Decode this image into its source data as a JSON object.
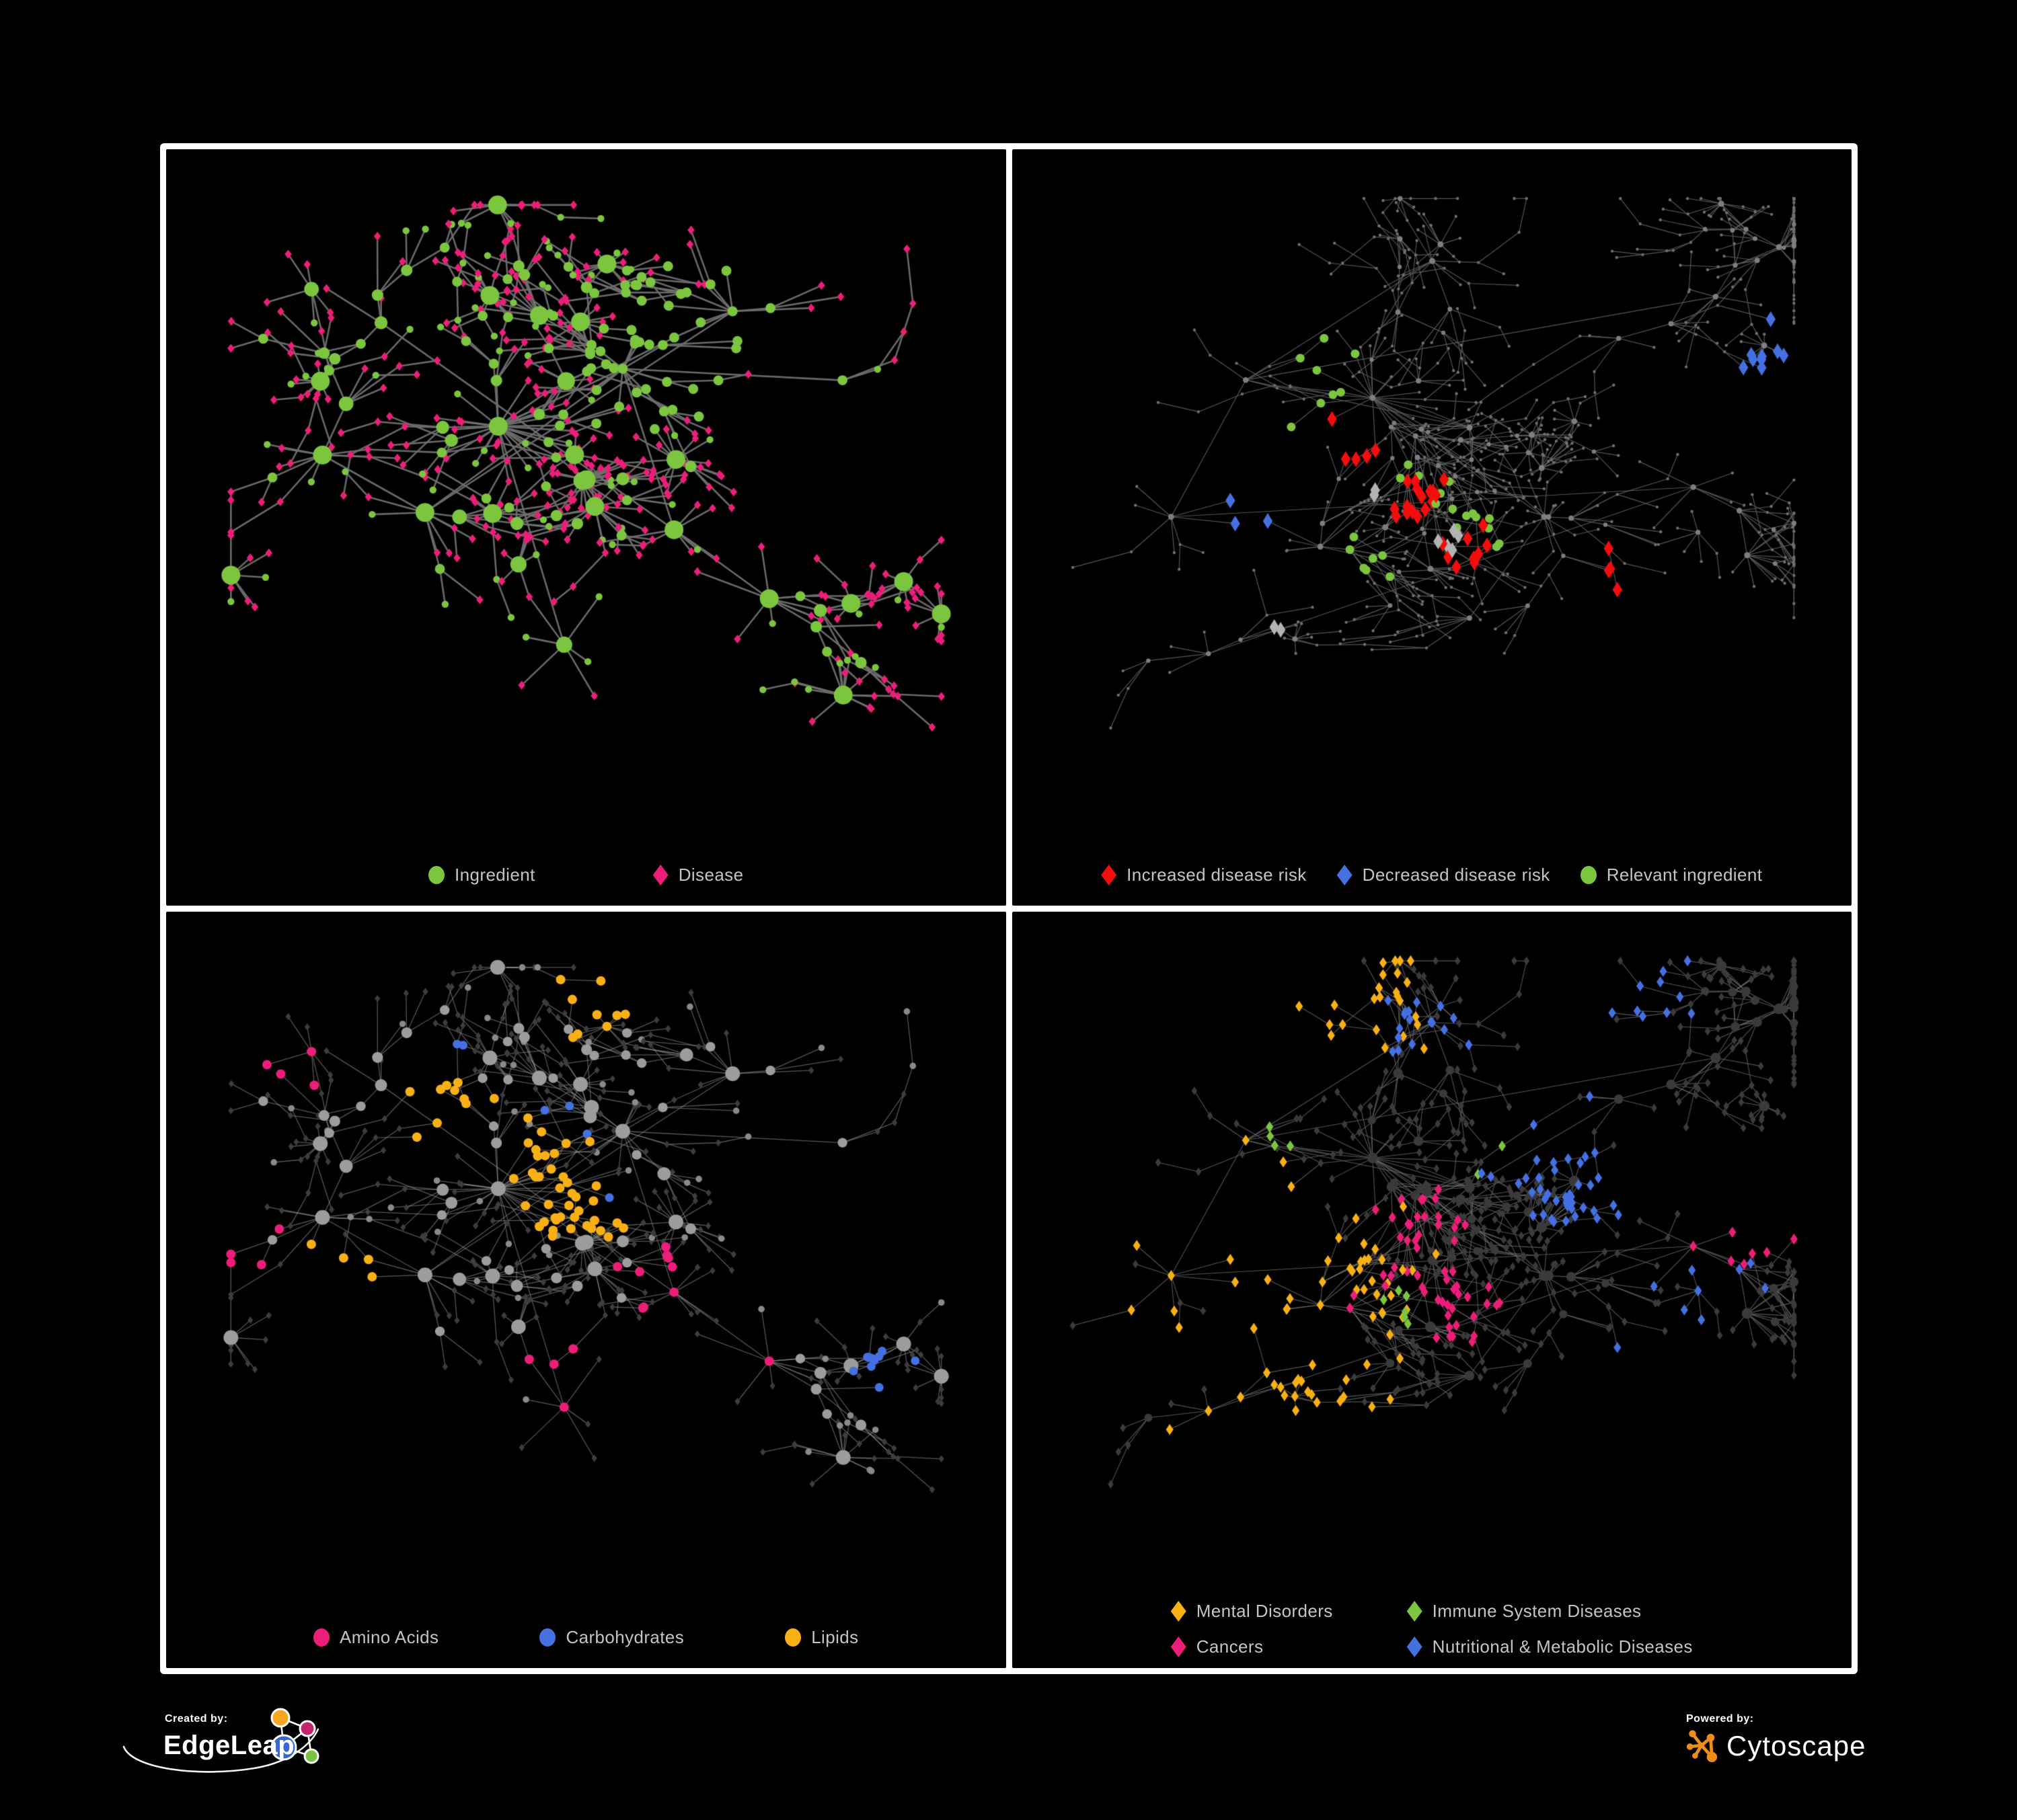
{
  "figure": {
    "background": "#000000",
    "panel_background": "#000000",
    "border_color": "#ffffff"
  },
  "footer": {
    "created_by": "Created by:",
    "brand_name": "EdgeLeap",
    "powered_by": "Powered by:",
    "engine_name": "Cytoscape"
  },
  "palette": {
    "green": "#7CC53E",
    "magenta": "#EC1E79",
    "red": "#F40D0D",
    "blue": "#4470E2",
    "orange": "#F9B014",
    "gray_highlight": "#B3B3B3",
    "dim_gray": "#3D3D3D",
    "legend_text": "#C4C4C4",
    "edgeleap_blue": "#3A66D4",
    "edgeleap_orange": "#F5A623",
    "edgeleap_magenta": "#C2256E",
    "edgeleap_green": "#7DC242",
    "cytoscape_orange": "#EE8C1C"
  },
  "panels": [
    {
      "name": "ingredient-disease-network",
      "topology": "A",
      "legend_layout": "row",
      "legend_gap": 175,
      "legend": [
        {
          "icon": "circle-swatch",
          "color": "#7CC53E",
          "label": "Ingredient"
        },
        {
          "icon": "diamond-swatch",
          "color": "#EC1E79",
          "label": "Disease"
        }
      ],
      "style": {
        "seed": 21,
        "margins": [
          70,
          80,
          200,
          80
        ],
        "dw": 0.95,
        "edge": {
          "color": "#6F6F6F",
          "width": 2.6,
          "alpha": 0.95
        },
        "hub": {
          "shape": "circle",
          "color": "#7CC53E",
          "minDeg": 3,
          "rBase": 4.0,
          "rScale": 1.15,
          "rMax": 14
        },
        "leaf": {
          "shape": "diamond",
          "color": "#EC1E79",
          "r": 5.6
        },
        "leafAlt": {
          "shape": "circle",
          "color": "#7CC53E",
          "r": 5.2,
          "prob": 0.2
        },
        "highlights": [
          {
            "shape": "circle",
            "color": "#7CC53E",
            "size": 7.5,
            "count": 46,
            "focals": [
              [
                0.64,
                0.23
              ],
              [
                0.58,
                0.3
              ]
            ],
            "radius": 0.08
          }
        ]
      }
    },
    {
      "name": "disease-risk-network",
      "topology": "B",
      "legend_layout": "row",
      "legend_gap": 45,
      "legend": [
        {
          "icon": "diamond-swatch",
          "color": "#F40D0D",
          "label": "Increased disease risk"
        },
        {
          "icon": "diamond-swatch",
          "color": "#4470E2",
          "label": "Decreased disease risk"
        },
        {
          "icon": "circle-swatch",
          "color": "#7CC53E",
          "label": "Relevant ingredient"
        }
      ],
      "style": {
        "seed": 31,
        "margins": [
          60,
          70,
          180,
          70
        ],
        "dw": 0.72,
        "edge": {
          "color": "#5E5E5E",
          "width": 1.2,
          "alpha": 0.9
        },
        "hub": {
          "shape": "circle",
          "color": "#7E7E7E",
          "minDeg": 4,
          "rBase": 2.2,
          "rScale": 0.25,
          "rMax": 4.5
        },
        "leaf": {
          "shape": "circle",
          "color": "#6F6F6F",
          "r": 2.2
        },
        "highlights": [
          {
            "shape": "diamond",
            "color": "#F40D0D",
            "size": 10,
            "count": 34,
            "focals": [
              [
                0.4,
                0.45
              ],
              [
                0.48,
                0.52
              ],
              [
                0.36,
                0.4
              ],
              [
                0.55,
                0.6
              ],
              [
                0.6,
                0.92
              ],
              [
                0.75,
                0.65
              ]
            ],
            "radius": 0.11
          },
          {
            "shape": "diamond",
            "color": "#4470E2",
            "size": 10,
            "count": 12,
            "focals": [
              [
                0.23,
                0.5
              ],
              [
                0.94,
                0.32
              ]
            ],
            "radius": 0.08
          },
          {
            "shape": "diamond",
            "color": "#B3B3B3",
            "size": 10,
            "count": 9,
            "focals": [
              [
                0.17,
                0.47
              ],
              [
                0.43,
                0.5
              ],
              [
                0.52,
                0.6
              ],
              [
                0.28,
                0.75
              ]
            ],
            "radius": 0.09
          },
          {
            "shape": "circle",
            "color": "#7CC53E",
            "size": 6.5,
            "count": 30,
            "focals": [
              [
                0.3,
                0.42
              ],
              [
                0.48,
                0.5
              ],
              [
                0.22,
                0.46
              ],
              [
                0.55,
                0.58
              ],
              [
                0.12,
                0.72
              ],
              [
                0.4,
                0.62
              ],
              [
                0.35,
                0.3
              ]
            ],
            "radius": 0.14
          }
        ]
      }
    },
    {
      "name": "nutrient-class-network",
      "topology": "A",
      "legend_layout": "row",
      "legend_gap": 150,
      "legend": [
        {
          "icon": "circle-swatch",
          "color": "#EC1E79",
          "label": "Amino Acids"
        },
        {
          "icon": "circle-swatch",
          "color": "#4470E2",
          "label": "Carbohydrates"
        },
        {
          "icon": "circle-swatch",
          "color": "#F9B014",
          "label": "Lipids"
        }
      ],
      "style": {
        "seed": 41,
        "margins": [
          70,
          80,
          200,
          80
        ],
        "dw": 0.9,
        "edge": {
          "color": "#9A9A9A",
          "width": 1.3,
          "alpha": 0.55
        },
        "hub": {
          "shape": "circle",
          "color": "#9C9C9C",
          "minDeg": 3,
          "rBase": 4.5,
          "rScale": 0.9,
          "rMax": 11
        },
        "leaf": {
          "shape": "diamond",
          "color": "#3D3D3D",
          "r": 4.6
        },
        "leafAlt": {
          "shape": "circle",
          "color": "#8A8A8A",
          "r": 4.8,
          "prob": 0.16
        },
        "highlights": [
          {
            "shape": "circle",
            "color": "#F9B014",
            "size": 7,
            "count": 64,
            "focals": [
              [
                0.48,
                0.43
              ],
              [
                0.42,
                0.35
              ],
              [
                0.64,
                0.77
              ],
              [
                0.52,
                0.07
              ],
              [
                0.15,
                0.55
              ],
              [
                0.3,
                0.25
              ]
            ],
            "radius": 0.1
          },
          {
            "shape": "circle",
            "color": "#4470E2",
            "size": 6.5,
            "count": 16,
            "focals": [
              [
                0.52,
                0.4
              ],
              [
                0.47,
                0.3
              ],
              [
                0.3,
                0.15
              ],
              [
                0.9,
                0.7
              ]
            ],
            "radius": 0.07
          },
          {
            "shape": "circle",
            "color": "#EC1E79",
            "size": 7,
            "count": 22,
            "focals": [
              [
                0.45,
                0.72
              ],
              [
                0.7,
                0.7
              ],
              [
                0.03,
                0.5
              ],
              [
                0.34,
                0.9
              ],
              [
                0.83,
                0.51
              ],
              [
                0.09,
                0.2
              ],
              [
                0.6,
                0.55
              ]
            ],
            "radius": 0.06
          }
        ]
      }
    },
    {
      "name": "disease-category-network",
      "topology": "B",
      "legend_layout": "grid",
      "legend_gap": 110,
      "legend": [
        {
          "icon": "diamond-swatch",
          "color": "#F9B014",
          "label": "Mental Disorders"
        },
        {
          "icon": "diamond-swatch",
          "color": "#7CC53E",
          "label": "Immune System Diseases"
        },
        {
          "icon": "diamond-swatch",
          "color": "#EC1E79",
          "label": "Cancers"
        },
        {
          "icon": "diamond-swatch",
          "color": "#4470E2",
          "label": "Nutritional & Metabolic Diseases"
        }
      ],
      "style": {
        "seed": 51,
        "margins": [
          60,
          70,
          190,
          70
        ],
        "dw": 0.8,
        "edge": {
          "color": "#6A6A6A",
          "width": 1.1,
          "alpha": 0.8
        },
        "hub": {
          "shape": "circle",
          "color": "#3A3A3A",
          "minDeg": 4,
          "rBase": 4.5,
          "rScale": 0.4,
          "rMax": 8
        },
        "leaf": {
          "shape": "diamond",
          "color": "#3B3B3B",
          "r": 5.4
        },
        "highlights": [
          {
            "shape": "diamond",
            "color": "#F9B014",
            "size": 7,
            "count": 92,
            "focals": [
              [
                0.26,
                0.46
              ],
              [
                0.33,
                0.55
              ],
              [
                0.2,
                0.52
              ],
              [
                0.35,
                0.1
              ],
              [
                0.3,
                0.78
              ]
            ],
            "radius": 0.1
          },
          {
            "shape": "diamond",
            "color": "#EC1E79",
            "size": 7,
            "count": 64,
            "focals": [
              [
                0.4,
                0.55
              ],
              [
                0.46,
                0.47
              ],
              [
                0.52,
                0.6
              ],
              [
                0.92,
                0.47
              ],
              [
                0.35,
                0.88
              ]
            ],
            "radius": 0.09
          },
          {
            "shape": "diamond",
            "color": "#4470E2",
            "size": 7,
            "count": 78,
            "focals": [
              [
                0.8,
                0.74
              ],
              [
                0.65,
                0.33
              ],
              [
                0.72,
                0.43
              ],
              [
                0.46,
                0.12
              ],
              [
                0.77,
                0.07
              ],
              [
                0.34,
                0.9
              ],
              [
                0.62,
                0.95
              ],
              [
                0.88,
                0.55
              ]
            ],
            "radius": 0.075
          },
          {
            "shape": "diamond",
            "color": "#7CC53E",
            "size": 7,
            "count": 13,
            "focals": [
              [
                0.3,
                0.3
              ],
              [
                0.6,
                0.35
              ],
              [
                0.45,
                0.6
              ],
              [
                0.7,
                0.65
              ],
              [
                0.25,
                0.55
              ]
            ],
            "radius": 0.4
          }
        ]
      }
    }
  ],
  "topologies": {
    "A": {
      "seed": 11,
      "count": 560,
      "hubBias": 1.9,
      "step": 0.085,
      "decay": 0.93,
      "burst": {
        "prob": 0.07,
        "min": 5,
        "max": 13
      },
      "cross": 70,
      "linkDist": 0.07,
      "centers": [
        [
          0.38,
          0.4
        ],
        [
          0.55,
          0.3
        ],
        [
          0.28,
          0.55
        ],
        [
          0.62,
          0.58
        ],
        [
          0.7,
          0.2
        ],
        [
          0.22,
          0.22
        ],
        [
          0.47,
          0.78
        ],
        [
          0.85,
          0.32
        ],
        [
          0.14,
          0.45
        ],
        [
          0.75,
          0.7
        ]
      ]
    },
    "B": {
      "seed": 7,
      "count": 800,
      "hubBias": 1.6,
      "step": 0.07,
      "decay": 0.94,
      "burst": {
        "prob": 0.05,
        "min": 4,
        "max": 10
      },
      "cross": 120,
      "linkDist": 0.06,
      "centers": [
        [
          0.42,
          0.35
        ],
        [
          0.55,
          0.4
        ],
        [
          0.25,
          0.32
        ],
        [
          0.65,
          0.55
        ],
        [
          0.35,
          0.6
        ],
        [
          0.75,
          0.25
        ],
        [
          0.55,
          0.72
        ],
        [
          0.15,
          0.55
        ],
        [
          0.85,
          0.5
        ],
        [
          0.5,
          0.12
        ],
        [
          0.2,
          0.78
        ],
        [
          0.88,
          0.18
        ]
      ]
    }
  }
}
